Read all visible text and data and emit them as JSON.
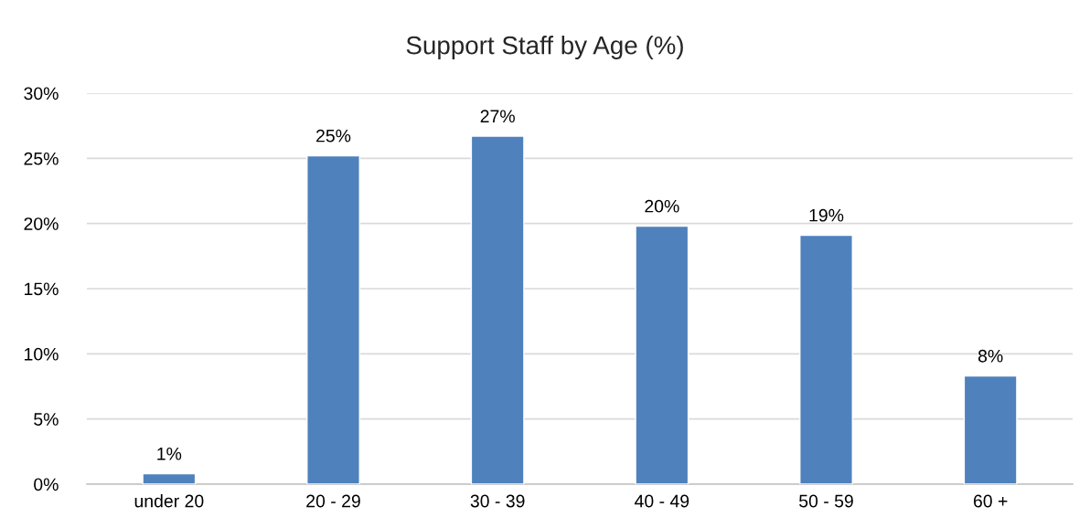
{
  "chart_data": {
    "type": "bar",
    "title": "Support Staff by Age (%)",
    "categories": [
      "under 20",
      "20 - 29",
      "30 - 39",
      "40 - 49",
      "50 - 59",
      "60 +"
    ],
    "values": [
      0.8,
      25.2,
      26.7,
      19.8,
      19.1,
      8.3
    ],
    "value_labels": [
      "1%",
      "25%",
      "27%",
      "20%",
      "19%",
      "8%"
    ],
    "color": "#4f81bd",
    "ylim": [
      0,
      30
    ],
    "yticks": [
      {
        "value": 0,
        "label": "0%"
      },
      {
        "value": 5,
        "label": "5%"
      },
      {
        "value": 10,
        "label": "10%"
      },
      {
        "value": 15,
        "label": "15%"
      },
      {
        "value": 20,
        "label": "20%"
      },
      {
        "value": 25,
        "label": "25%"
      },
      {
        "value": 30,
        "label": "30%"
      }
    ],
    "grid": "y",
    "legend": false
  }
}
